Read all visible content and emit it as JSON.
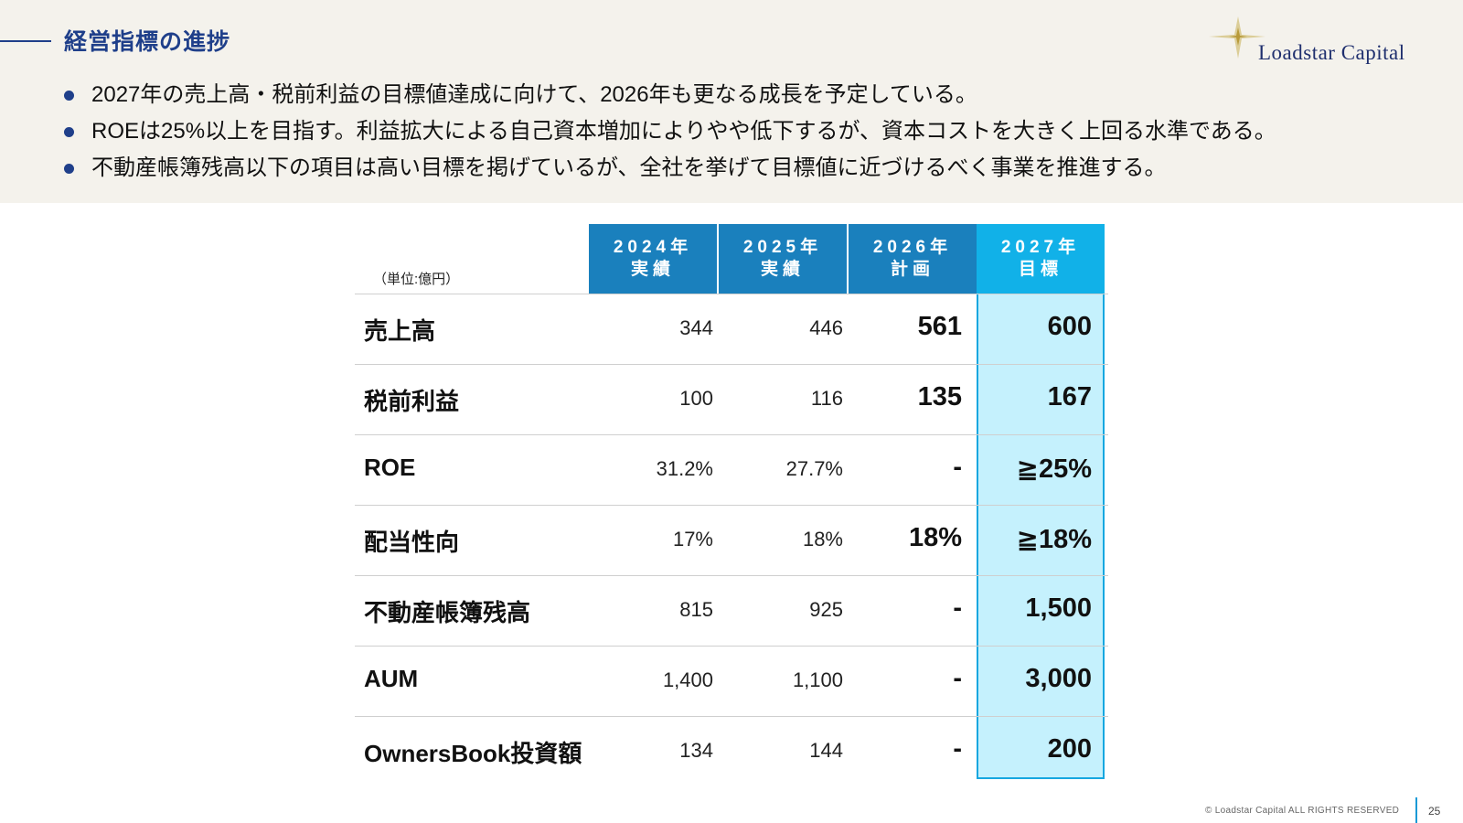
{
  "header": {
    "title": "経営指標の進捗",
    "logo_text": "Loadstar Capital"
  },
  "bullets": [
    "2027年の売上高・税前利益の目標値達成に向けて、2026年も更なる成長を予定している。",
    "ROEは25%以上を目指す。利益拡大による自己資本増加によりやや低下するが、資本コストを大きく上回る水準である。",
    "不動産帳簿残高以下の項目は高い目標を掲げているが、全社を挙げて目標値に近づけるべく事業を推進する。"
  ],
  "table": {
    "unit": "（単位:億円）",
    "columns": [
      {
        "year": "2024年",
        "type": "実績"
      },
      {
        "year": "2025年",
        "type": "実績"
      },
      {
        "year": "2026年",
        "type": "計画"
      },
      {
        "year": "2027年",
        "type": "目標"
      }
    ],
    "rows": [
      {
        "label": "売上高",
        "v2024": "344",
        "v2025": "446",
        "v2026": "561",
        "v2027": "600"
      },
      {
        "label": "税前利益",
        "v2024": "100",
        "v2025": "116",
        "v2026": "135",
        "v2027": "167"
      },
      {
        "label": "ROE",
        "v2024": "31.2%",
        "v2025": "27.7%",
        "v2026": "-",
        "v2027": "≧25%"
      },
      {
        "label": "配当性向",
        "v2024": "17%",
        "v2025": "18%",
        "v2026": "18%",
        "v2027": "≧18%"
      },
      {
        "label": "不動産帳簿残高",
        "v2024": "815",
        "v2025": "925",
        "v2026": "-",
        "v2027": "1,500"
      },
      {
        "label": "AUM",
        "v2024": "1,400",
        "v2025": "1,100",
        "v2026": "-",
        "v2027": "3,000"
      },
      {
        "label": "OwnersBook投資額",
        "v2024": "134",
        "v2025": "144",
        "v2026": "-",
        "v2027": "200"
      }
    ]
  },
  "footer": {
    "copyright": "© Loadstar Capital ALL RIGHTS RESERVED",
    "page_number": "25"
  },
  "colors": {
    "title": "#1f3f8a",
    "header_actual": "#1a80bd",
    "header_target": "#11b1e8",
    "target_fill": "#c5f1fd",
    "band": "#f4f2ec"
  }
}
